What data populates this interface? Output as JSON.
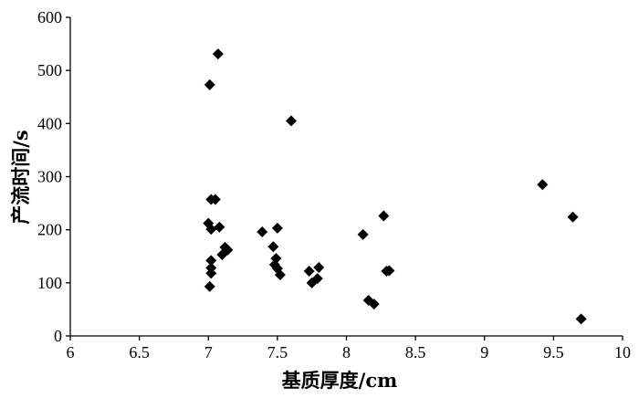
{
  "chart_data": {
    "type": "scatter",
    "xlabel": "基质厚度/cm",
    "ylabel": "产流时间/s",
    "xlim": [
      6,
      10
    ],
    "ylim": [
      0,
      600
    ],
    "x_tick_labels": [
      "6",
      "6.5",
      "7",
      "7.5",
      "8",
      "8.5",
      "9",
      "9.5",
      "10"
    ],
    "y_tick_labels": [
      "0",
      "100",
      "200",
      "300",
      "400",
      "500",
      "600"
    ],
    "grid": false,
    "legend": "none",
    "marker": "diamond",
    "marker_color": "#000000",
    "series": [
      {
        "x": [
          7.01,
          7.07,
          7.6,
          9.42,
          9.64,
          9.7,
          8.27,
          8.12,
          8.29,
          8.31,
          8.16,
          8.2,
          7.02,
          7.05,
          7.0,
          7.02,
          7.08,
          7.02,
          7.02,
          7.02,
          7.01,
          7.1,
          7.12,
          7.14,
          7.39,
          7.5,
          7.47,
          7.49,
          7.48,
          7.5,
          7.52,
          7.73,
          7.8,
          7.79,
          7.75
        ],
        "y": [
          473,
          531,
          405,
          285,
          224,
          32,
          226,
          191,
          122,
          123,
          67,
          60,
          257,
          257,
          212,
          201,
          205,
          142,
          128,
          118,
          93,
          153,
          167,
          162,
          196,
          203,
          168,
          146,
          134,
          127,
          115,
          122,
          129,
          108,
          100
        ]
      }
    ]
  }
}
